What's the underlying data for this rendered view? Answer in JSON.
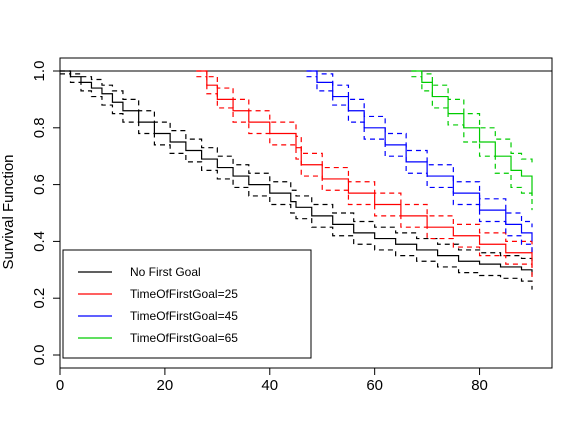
{
  "chart_data": {
    "type": "line",
    "title": "",
    "xlabel": "",
    "ylabel": "Survival Function",
    "xlim": [
      0,
      92
    ],
    "ylim": [
      0,
      1.05
    ],
    "x_ticks": [
      0,
      20,
      40,
      60,
      80
    ],
    "y_ticks": [
      0.0,
      0.2,
      0.4,
      0.6,
      0.8,
      1.0
    ],
    "x_tick_labels": [
      "0",
      "20",
      "40",
      "60",
      "80"
    ],
    "y_tick_labels": [
      "0.0",
      "0.2",
      "0.4",
      "0.6",
      "0.8",
      "1.0"
    ],
    "reference_line": {
      "y": 1.0,
      "color": "#000000"
    },
    "grid": false,
    "legend_position": "bottom-left",
    "series": [
      {
        "name": "No First Goal",
        "color": "#000000",
        "start": 0,
        "x": [
          0,
          2,
          4,
          6,
          8,
          10,
          12,
          15,
          18,
          21,
          24,
          27,
          30,
          33,
          36,
          40,
          44,
          45,
          48,
          52,
          56,
          60,
          64,
          68,
          72,
          76,
          80,
          84,
          88,
          90
        ],
        "y": [
          1.0,
          0.98,
          0.96,
          0.94,
          0.92,
          0.89,
          0.86,
          0.82,
          0.78,
          0.75,
          0.72,
          0.69,
          0.66,
          0.63,
          0.6,
          0.57,
          0.54,
          0.52,
          0.49,
          0.46,
          0.43,
          0.41,
          0.39,
          0.37,
          0.35,
          0.33,
          0.32,
          0.31,
          0.3,
          0.28
        ],
        "lower": [
          0.99,
          0.96,
          0.93,
          0.91,
          0.88,
          0.85,
          0.82,
          0.78,
          0.74,
          0.71,
          0.68,
          0.65,
          0.62,
          0.59,
          0.56,
          0.53,
          0.5,
          0.48,
          0.45,
          0.42,
          0.39,
          0.37,
          0.35,
          0.33,
          0.31,
          0.29,
          0.28,
          0.27,
          0.26,
          0.23
        ],
        "upper": [
          1.0,
          0.99,
          0.98,
          0.97,
          0.95,
          0.93,
          0.9,
          0.86,
          0.82,
          0.79,
          0.76,
          0.73,
          0.7,
          0.67,
          0.64,
          0.61,
          0.58,
          0.56,
          0.53,
          0.5,
          0.47,
          0.45,
          0.43,
          0.41,
          0.39,
          0.37,
          0.36,
          0.35,
          0.34,
          0.32
        ]
      },
      {
        "name": "TimeOfFirstGoal=25",
        "color": "#ff0000",
        "start": 26,
        "x": [
          26,
          28,
          30,
          33,
          36,
          40,
          45,
          46,
          50,
          55,
          60,
          65,
          70,
          75,
          80,
          85,
          90
        ],
        "y": [
          1.0,
          0.95,
          0.9,
          0.86,
          0.82,
          0.78,
          0.73,
          0.67,
          0.62,
          0.57,
          0.53,
          0.49,
          0.45,
          0.42,
          0.39,
          0.36,
          0.31
        ],
        "lower": [
          0.98,
          0.92,
          0.87,
          0.82,
          0.78,
          0.74,
          0.69,
          0.63,
          0.58,
          0.53,
          0.49,
          0.45,
          0.41,
          0.38,
          0.35,
          0.32,
          0.26
        ],
        "upper": [
          1.0,
          0.98,
          0.94,
          0.9,
          0.86,
          0.82,
          0.77,
          0.71,
          0.66,
          0.61,
          0.57,
          0.53,
          0.49,
          0.46,
          0.43,
          0.4,
          0.36
        ]
      },
      {
        "name": "TimeOfFirstGoal=45",
        "color": "#0000ff",
        "start": 47,
        "x": [
          47,
          49,
          52,
          55,
          58,
          62,
          66,
          70,
          75,
          80,
          85,
          88,
          90
        ],
        "y": [
          1.0,
          0.96,
          0.91,
          0.86,
          0.8,
          0.74,
          0.68,
          0.63,
          0.57,
          0.51,
          0.46,
          0.43,
          0.4
        ],
        "lower": [
          0.98,
          0.93,
          0.88,
          0.82,
          0.76,
          0.7,
          0.64,
          0.59,
          0.53,
          0.47,
          0.42,
          0.39,
          0.35
        ],
        "upper": [
          1.0,
          0.99,
          0.95,
          0.9,
          0.84,
          0.78,
          0.72,
          0.67,
          0.61,
          0.55,
          0.5,
          0.47,
          0.45
        ]
      },
      {
        "name": "TimeOfFirstGoal=65",
        "color": "#00cc00",
        "start": 67,
        "x": [
          67,
          69,
          71,
          74,
          77,
          80,
          83,
          86,
          88,
          90
        ],
        "y": [
          1.0,
          0.96,
          0.91,
          0.85,
          0.8,
          0.75,
          0.7,
          0.65,
          0.63,
          0.56
        ],
        "lower": [
          0.98,
          0.93,
          0.87,
          0.81,
          0.75,
          0.7,
          0.64,
          0.59,
          0.57,
          0.51
        ],
        "upper": [
          1.0,
          0.99,
          0.95,
          0.9,
          0.85,
          0.8,
          0.76,
          0.71,
          0.69,
          0.67
        ]
      }
    ]
  }
}
